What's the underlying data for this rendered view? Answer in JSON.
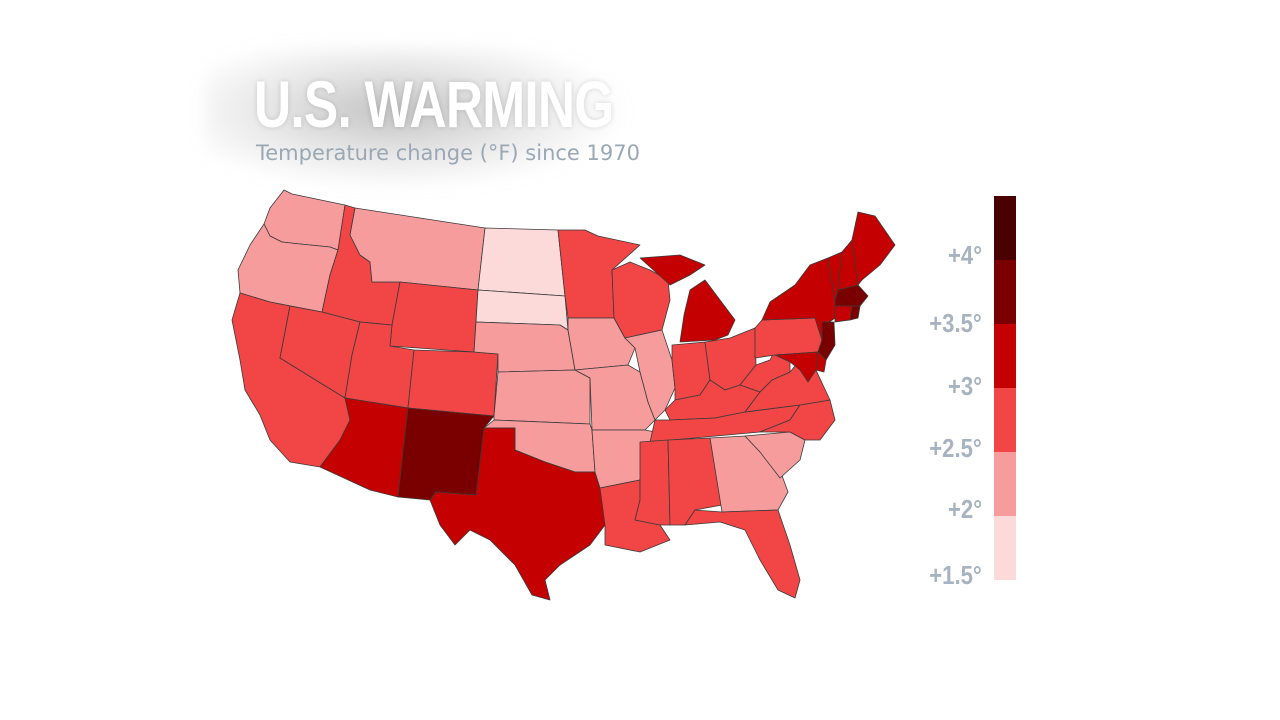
{
  "title": "U.S. WARMING",
  "subtitle": "Temperature change (°F) since 1970",
  "legend": {
    "labels": [
      "+4°",
      "+3.5°",
      "+3°",
      "+2.5°",
      "+2°",
      "+1.5°"
    ],
    "colors": [
      "#4a0000",
      "#7a0000",
      "#c40000",
      "#f24545",
      "#f79c9c",
      "#fddada"
    ]
  },
  "colors": {
    "title": "#ffffff",
    "subtitle": "#9aa7b4",
    "legend_text": "#a7b3c0",
    "state_border": "#3a3a3a"
  },
  "states": [
    {
      "code": "WA",
      "bin": 4
    },
    {
      "code": "OR",
      "bin": 4
    },
    {
      "code": "CA",
      "bin": 3
    },
    {
      "code": "ID",
      "bin": 3
    },
    {
      "code": "NV",
      "bin": 3
    },
    {
      "code": "MT",
      "bin": 4
    },
    {
      "code": "WY",
      "bin": 3
    },
    {
      "code": "UT",
      "bin": 3
    },
    {
      "code": "AZ",
      "bin": 2
    },
    {
      "code": "CO",
      "bin": 3
    },
    {
      "code": "NM",
      "bin": 1
    },
    {
      "code": "ND",
      "bin": 5
    },
    {
      "code": "SD",
      "bin": 5
    },
    {
      "code": "NE",
      "bin": 4
    },
    {
      "code": "KS",
      "bin": 4
    },
    {
      "code": "OK",
      "bin": 4
    },
    {
      "code": "TX",
      "bin": 2
    },
    {
      "code": "MN",
      "bin": 3
    },
    {
      "code": "IA",
      "bin": 4
    },
    {
      "code": "MO",
      "bin": 4
    },
    {
      "code": "AR",
      "bin": 4
    },
    {
      "code": "LA",
      "bin": 3
    },
    {
      "code": "WI",
      "bin": 3
    },
    {
      "code": "IL",
      "bin": 4
    },
    {
      "code": "MI",
      "bin": 2
    },
    {
      "code": "IN",
      "bin": 3
    },
    {
      "code": "OH",
      "bin": 3
    },
    {
      "code": "KY",
      "bin": 3
    },
    {
      "code": "TN",
      "bin": 3
    },
    {
      "code": "MS",
      "bin": 3
    },
    {
      "code": "AL",
      "bin": 3
    },
    {
      "code": "GA",
      "bin": 4
    },
    {
      "code": "FL",
      "bin": 3
    },
    {
      "code": "SC",
      "bin": 4
    },
    {
      "code": "NC",
      "bin": 3
    },
    {
      "code": "VA",
      "bin": 3
    },
    {
      "code": "WV",
      "bin": 3
    },
    {
      "code": "PA",
      "bin": 3
    },
    {
      "code": "NY",
      "bin": 2
    },
    {
      "code": "VT",
      "bin": 2
    },
    {
      "code": "NH",
      "bin": 2
    },
    {
      "code": "ME",
      "bin": 2
    },
    {
      "code": "MA",
      "bin": 1
    },
    {
      "code": "CT",
      "bin": 2
    },
    {
      "code": "RI",
      "bin": 1
    },
    {
      "code": "NJ",
      "bin": 1
    },
    {
      "code": "DE",
      "bin": 2
    },
    {
      "code": "MD",
      "bin": 2
    }
  ]
}
